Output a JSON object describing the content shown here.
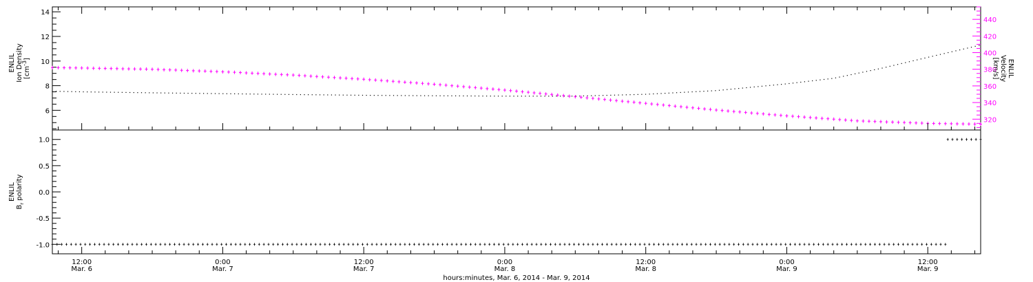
{
  "chart_data": [
    {
      "type": "line",
      "panel": "top",
      "x_unit": "hours",
      "x_origin_label": "Mar. 6, 2014 00:00",
      "xlim": [
        9.5,
        88.5
      ],
      "left_axis": {
        "label_lines": [
          "ENLIL",
          "Ion Density"
        ],
        "unit_base": "[cm",
        "unit_sup": "-3",
        "unit_close": "]",
        "ylim": [
          4.4,
          14.4
        ],
        "ticks": [
          6,
          8,
          10,
          12,
          14
        ],
        "color": "#000000"
      },
      "right_axis": {
        "label_lines": [
          "ENLIL",
          "Velocity",
          "[km/s]"
        ],
        "ylim": [
          307,
          455
        ],
        "ticks": [
          320,
          340,
          360,
          380,
          400,
          420,
          440
        ],
        "color": "#ff00ff"
      },
      "series": [
        {
          "axis": "left",
          "color": "#000000",
          "x": [
            9.5,
            12,
            18,
            24,
            30,
            36,
            42,
            48,
            54,
            60,
            66,
            72,
            76,
            80,
            84,
            88.5
          ],
          "y": [
            7.55,
            7.5,
            7.42,
            7.35,
            7.28,
            7.22,
            7.18,
            7.15,
            7.15,
            7.3,
            7.6,
            8.15,
            8.6,
            9.4,
            10.3,
            11.3
          ]
        },
        {
          "axis": "right",
          "color": "#ff00ff",
          "x": [
            9.5,
            12,
            18,
            24,
            30,
            36,
            42,
            48,
            54,
            60,
            66,
            72,
            78,
            84,
            88.5
          ],
          "y": [
            382,
            381.5,
            380,
            377,
            373,
            368,
            362,
            355,
            347,
            339,
            331,
            324,
            318,
            315,
            314
          ]
        }
      ]
    },
    {
      "type": "scatter",
      "panel": "bottom",
      "x_unit": "hours",
      "xlim": [
        9.5,
        88.5
      ],
      "y_axis": {
        "label_lines": [
          "ENLIL"
        ],
        "label_b": "B",
        "label_sub": "r",
        "label_rest": " polarity",
        "ylim": [
          -1.18,
          1.18
        ],
        "ticks": [
          "1.0",
          "0.5",
          "0.0",
          "-0.5",
          "-1.0"
        ],
        "tick_values": [
          1.0,
          0.5,
          0.0,
          -0.5,
          -1.0
        ]
      },
      "series": [
        {
          "color": "#000000",
          "x": [
            9.5,
            85.7
          ],
          "y": [
            -1.0,
            -1.0
          ]
        },
        {
          "color": "#000000",
          "x": [
            85.7,
            88.5
          ],
          "y": [
            1.0,
            1.0
          ]
        }
      ]
    }
  ],
  "x_axis": {
    "title": "hours:minutes, Mar. 6, 2014 - Mar. 9, 2014",
    "ticks": [
      {
        "x": 12,
        "time": "12:00",
        "date": "Mar. 6"
      },
      {
        "x": 24,
        "time": "0:00",
        "date": "Mar. 7"
      },
      {
        "x": 36,
        "time": "12:00",
        "date": "Mar. 7"
      },
      {
        "x": 48,
        "time": "0:00",
        "date": "Mar. 8"
      },
      {
        "x": 60,
        "time": "12:00",
        "date": "Mar. 8"
      },
      {
        "x": 72,
        "time": "0:00",
        "date": "Mar. 9"
      },
      {
        "x": 84,
        "time": "12:00",
        "date": "Mar. 9"
      }
    ]
  }
}
